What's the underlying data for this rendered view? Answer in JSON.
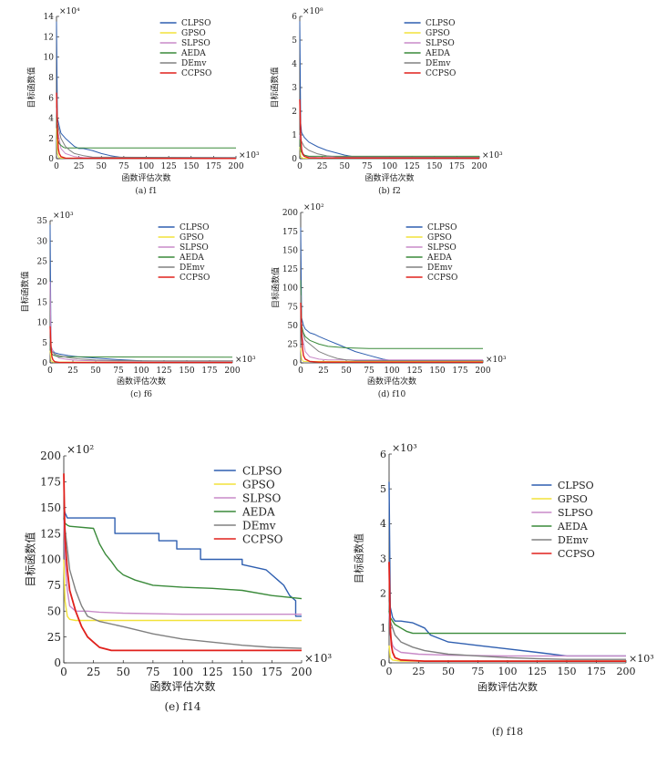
{
  "figure": {
    "legend_names": [
      "CLPSO",
      "GPSO",
      "SLPSO",
      "AEDA",
      "DEmv",
      "CCPSO"
    ],
    "colors": {
      "CLPSO": "#2f5fb0",
      "GPSO": "#f2e23a",
      "SLPSO": "#c88ac8",
      "AEDA": "#3a8a3a",
      "DEmv": "#808080",
      "CCPSO": "#e0201b"
    }
  },
  "chart_data": [
    {
      "id": "f1",
      "type": "line",
      "caption": "(a) f1",
      "xlabel": "函数评估次数",
      "ylabel": "目标函数值",
      "x_exponent": "×10³",
      "y_exponent": "×10⁴",
      "xlim": [
        0,
        200
      ],
      "ylim": [
        0,
        14
      ],
      "xticks": [
        0,
        25,
        50,
        75,
        100,
        125,
        150,
        175,
        200
      ],
      "yticks": [
        0,
        2,
        4,
        6,
        8,
        10,
        12,
        14
      ],
      "legend": "top-right",
      "grid": false,
      "series": [
        {
          "name": "CLPSO",
          "x": [
            0,
            1,
            3,
            5,
            10,
            15,
            20,
            25,
            30,
            40,
            50,
            60,
            70,
            75,
            200
          ],
          "y": [
            13.5,
            4.0,
            3.2,
            2.5,
            2.0,
            1.6,
            1.2,
            1.0,
            1.0,
            0.8,
            0.5,
            0.3,
            0.15,
            0.1,
            0.1
          ]
        },
        {
          "name": "GPSO",
          "x": [
            0,
            1,
            3,
            5,
            200
          ],
          "y": [
            3.0,
            0.5,
            0.1,
            0.05,
            0.05
          ]
        },
        {
          "name": "SLPSO",
          "x": [
            0,
            1,
            5,
            10,
            20,
            30,
            50,
            200
          ],
          "y": [
            5.0,
            3.0,
            1.0,
            0.5,
            0.2,
            0.1,
            0.05,
            0.05
          ]
        },
        {
          "name": "AEDA",
          "x": [
            0,
            1,
            3,
            5,
            8,
            10,
            200
          ],
          "y": [
            4.0,
            2.0,
            1.5,
            1.3,
            1.1,
            1.05,
            1.05
          ]
        },
        {
          "name": "DEmv",
          "x": [
            0,
            1,
            5,
            10,
            15,
            20,
            30,
            40,
            200
          ],
          "y": [
            6.0,
            3.5,
            2.0,
            1.2,
            0.8,
            0.5,
            0.3,
            0.15,
            0.1
          ]
        },
        {
          "name": "CCPSO",
          "x": [
            0,
            1,
            2,
            3,
            5,
            10,
            200
          ],
          "y": [
            6.5,
            3.0,
            1.0,
            0.5,
            0.2,
            0.05,
            0.02
          ]
        }
      ]
    },
    {
      "id": "f2",
      "type": "line",
      "caption": "(b) f2",
      "xlabel": "函数评估次数",
      "ylabel": "目标函数值",
      "x_exponent": "×10³",
      "y_exponent": "×10⁸",
      "xlim": [
        0,
        200
      ],
      "ylim": [
        0,
        6
      ],
      "xticks": [
        0,
        25,
        50,
        75,
        100,
        125,
        150,
        175,
        200
      ],
      "yticks": [
        0,
        1,
        2,
        3,
        4,
        5,
        6
      ],
      "legend": "top-right",
      "grid": false,
      "series": [
        {
          "name": "CLPSO",
          "x": [
            0,
            1,
            2,
            5,
            10,
            20,
            30,
            40,
            50,
            60,
            70,
            200
          ],
          "y": [
            5.8,
            1.5,
            1.1,
            0.9,
            0.7,
            0.5,
            0.35,
            0.25,
            0.15,
            0.08,
            0.05,
            0.05
          ]
        },
        {
          "name": "GPSO",
          "x": [
            0,
            1,
            3,
            200
          ],
          "y": [
            0.5,
            0.1,
            0.02,
            0.02
          ]
        },
        {
          "name": "SLPSO",
          "x": [
            0,
            1,
            5,
            10,
            20,
            200
          ],
          "y": [
            1.0,
            0.4,
            0.15,
            0.08,
            0.05,
            0.05
          ]
        },
        {
          "name": "AEDA",
          "x": [
            0,
            1,
            5,
            10,
            200
          ],
          "y": [
            0.8,
            0.3,
            0.15,
            0.1,
            0.1
          ]
        },
        {
          "name": "DEmv",
          "x": [
            0,
            1,
            5,
            10,
            20,
            30,
            40,
            200
          ],
          "y": [
            1.2,
            0.8,
            0.5,
            0.35,
            0.2,
            0.12,
            0.08,
            0.06
          ]
        },
        {
          "name": "CCPSO",
          "x": [
            0,
            1,
            2,
            3,
            5,
            10,
            200
          ],
          "y": [
            2.5,
            1.0,
            0.4,
            0.2,
            0.1,
            0.03,
            0.02
          ]
        }
      ]
    },
    {
      "id": "f6",
      "type": "line",
      "caption": "(c) f6",
      "xlabel": "函数评估次数",
      "ylabel": "目标函数值",
      "x_exponent": "×10³",
      "y_exponent": "×10³",
      "xlim": [
        0,
        200
      ],
      "ylim": [
        0,
        35
      ],
      "xticks": [
        0,
        25,
        50,
        75,
        100,
        125,
        150,
        175,
        200
      ],
      "yticks": [
        0,
        5,
        10,
        15,
        20,
        25,
        30,
        35
      ],
      "legend": "top-right",
      "grid": false,
      "series": [
        {
          "name": "CLPSO",
          "x": [
            0,
            1,
            3,
            5,
            10,
            20,
            30,
            50,
            75,
            100,
            150,
            200
          ],
          "y": [
            34.0,
            4.0,
            3.0,
            2.5,
            2.2,
            1.8,
            1.5,
            1.2,
            0.8,
            0.5,
            0.3,
            0.3
          ]
        },
        {
          "name": "GPSO",
          "x": [
            0,
            1,
            3,
            200
          ],
          "y": [
            3.0,
            0.5,
            0.2,
            0.2
          ]
        },
        {
          "name": "SLPSO",
          "x": [
            0,
            1,
            5,
            10,
            20,
            30,
            50,
            100,
            200
          ],
          "y": [
            20.0,
            4.0,
            2.0,
            1.2,
            0.8,
            0.6,
            0.5,
            0.4,
            0.4
          ]
        },
        {
          "name": "AEDA",
          "x": [
            0,
            1,
            3,
            5,
            10,
            200
          ],
          "y": [
            4.0,
            2.5,
            2.0,
            1.8,
            1.5,
            1.4
          ]
        },
        {
          "name": "DEmv",
          "x": [
            0,
            1,
            5,
            10,
            20,
            30,
            50,
            100,
            200
          ],
          "y": [
            6.0,
            3.0,
            2.2,
            1.8,
            1.3,
            1.0,
            0.7,
            0.5,
            0.5
          ]
        },
        {
          "name": "CCPSO",
          "x": [
            0,
            1,
            2,
            3,
            5,
            10,
            200
          ],
          "y": [
            9.0,
            4.0,
            1.5,
            0.8,
            0.3,
            0.1,
            0.1
          ]
        }
      ]
    },
    {
      "id": "f10",
      "type": "line",
      "caption": "(d) f10",
      "xlabel": "函数评估次数",
      "ylabel": "目标函数值",
      "x_exponent": "×10³",
      "y_exponent": "×10²",
      "xlim": [
        0,
        200
      ],
      "ylim": [
        0,
        200
      ],
      "xticks": [
        0,
        25,
        50,
        75,
        100,
        125,
        150,
        175,
        200
      ],
      "yticks": [
        0,
        25,
        50,
        75,
        100,
        125,
        150,
        175,
        200
      ],
      "legend": "top-right",
      "grid": false,
      "series": [
        {
          "name": "CLPSO",
          "x": [
            0,
            1,
            3,
            5,
            10,
            15,
            20,
            30,
            40,
            50,
            60,
            75,
            90,
            100,
            200
          ],
          "y": [
            180,
            60,
            50,
            45,
            40,
            38,
            35,
            30,
            25,
            20,
            15,
            10,
            5,
            3,
            3
          ]
        },
        {
          "name": "GPSO",
          "x": [
            0,
            1,
            3,
            200
          ],
          "y": [
            20,
            5,
            2,
            2
          ]
        },
        {
          "name": "SLPSO",
          "x": [
            0,
            1,
            5,
            10,
            20,
            30,
            200
          ],
          "y": [
            100,
            40,
            15,
            8,
            5,
            4,
            4
          ]
        },
        {
          "name": "AEDA",
          "x": [
            0,
            1,
            3,
            5,
            10,
            20,
            30,
            50,
            75,
            200
          ],
          "y": [
            110,
            50,
            40,
            35,
            30,
            25,
            22,
            20,
            19,
            19
          ]
        },
        {
          "name": "DEmv",
          "x": [
            0,
            1,
            5,
            10,
            20,
            30,
            40,
            50,
            60,
            200
          ],
          "y": [
            90,
            45,
            30,
            25,
            15,
            10,
            6,
            4,
            3,
            3
          ]
        },
        {
          "name": "CCPSO",
          "x": [
            0,
            1,
            2,
            3,
            5,
            10,
            20,
            200
          ],
          "y": [
            80,
            40,
            20,
            10,
            5,
            2,
            1,
            1
          ]
        }
      ]
    },
    {
      "id": "f14",
      "type": "line",
      "caption": "(e) f14",
      "xlabel": "函数评估次数",
      "ylabel": "目标函数值",
      "x_exponent": "×10³",
      "y_exponent": "×10²",
      "xlim": [
        0,
        200
      ],
      "ylim": [
        0,
        200
      ],
      "xticks": [
        0,
        25,
        50,
        75,
        100,
        125,
        150,
        175,
        200
      ],
      "yticks": [
        0,
        25,
        50,
        75,
        100,
        125,
        150,
        175,
        200
      ],
      "legend": "top-right",
      "grid": false,
      "series": [
        {
          "name": "CLPSO",
          "x": [
            0,
            1,
            3,
            43,
            43,
            80,
            80,
            95,
            95,
            115,
            115,
            150,
            150,
            170,
            175,
            180,
            185,
            190,
            195,
            195,
            200
          ],
          "y": [
            150,
            145,
            140,
            140,
            125,
            125,
            118,
            118,
            110,
            110,
            100,
            100,
            95,
            90,
            85,
            80,
            75,
            65,
            60,
            45,
            45
          ]
        },
        {
          "name": "GPSO",
          "x": [
            0,
            1,
            3,
            5,
            10,
            200
          ],
          "y": [
            100,
            60,
            45,
            42,
            41,
            41
          ]
        },
        {
          "name": "SLPSO",
          "x": [
            0,
            1,
            3,
            5,
            10,
            20,
            30,
            50,
            100,
            200
          ],
          "y": [
            140,
            100,
            70,
            55,
            50,
            50,
            49,
            48,
            47,
            47
          ]
        },
        {
          "name": "AEDA",
          "x": [
            0,
            1,
            3,
            5,
            25,
            30,
            35,
            40,
            45,
            50,
            60,
            75,
            100,
            125,
            150,
            175,
            200
          ],
          "y": [
            140,
            135,
            133,
            132,
            130,
            115,
            105,
            98,
            90,
            85,
            80,
            75,
            73,
            72,
            70,
            65,
            62
          ]
        },
        {
          "name": "DEmv",
          "x": [
            0,
            1,
            3,
            5,
            10,
            15,
            20,
            30,
            50,
            75,
            100,
            125,
            150,
            175,
            200
          ],
          "y": [
            150,
            130,
            110,
            90,
            70,
            55,
            45,
            40,
            35,
            28,
            23,
            20,
            17,
            15,
            14
          ]
        },
        {
          "name": "CCPSO",
          "x": [
            0,
            1,
            3,
            5,
            10,
            15,
            20,
            25,
            30,
            40,
            50,
            75,
            200
          ],
          "y": [
            183,
            120,
            90,
            70,
            50,
            35,
            25,
            20,
            15,
            12,
            12,
            12,
            12
          ]
        }
      ]
    },
    {
      "id": "f18",
      "type": "line",
      "caption": "(f) f18",
      "xlabel": "函数评估次数",
      "ylabel": "目标函数值",
      "x_exponent": "×10³",
      "y_exponent": "×10³",
      "xlim": [
        0,
        200
      ],
      "ylim": [
        0,
        6
      ],
      "xticks": [
        0,
        25,
        50,
        75,
        100,
        125,
        150,
        175,
        200
      ],
      "yticks": [
        0,
        1,
        2,
        3,
        4,
        5,
        6
      ],
      "legend": "top-right",
      "grid": false,
      "series": [
        {
          "name": "CLPSO",
          "x": [
            0,
            1,
            3,
            5,
            10,
            20,
            30,
            35,
            50,
            75,
            100,
            125,
            150,
            200
          ],
          "y": [
            5.2,
            1.6,
            1.3,
            1.2,
            1.2,
            1.15,
            1.0,
            0.8,
            0.6,
            0.5,
            0.4,
            0.3,
            0.2,
            0.2
          ]
        },
        {
          "name": "GPSO",
          "x": [
            0,
            1,
            3,
            10,
            200
          ],
          "y": [
            0.5,
            0.15,
            0.08,
            0.05,
            0.05
          ]
        },
        {
          "name": "SLPSO",
          "x": [
            0,
            1,
            3,
            5,
            10,
            25,
            50,
            100,
            200
          ],
          "y": [
            1.5,
            0.8,
            0.5,
            0.4,
            0.3,
            0.25,
            0.22,
            0.2,
            0.2
          ]
        },
        {
          "name": "AEDA",
          "x": [
            0,
            1,
            3,
            5,
            10,
            15,
            20,
            200
          ],
          "y": [
            1.5,
            1.3,
            1.2,
            1.1,
            1.0,
            0.9,
            0.85,
            0.85
          ]
        },
        {
          "name": "DEmv",
          "x": [
            0,
            1,
            3,
            5,
            10,
            20,
            30,
            50,
            75,
            100,
            125,
            150,
            200
          ],
          "y": [
            1.8,
            1.2,
            1.0,
            0.8,
            0.6,
            0.45,
            0.35,
            0.25,
            0.2,
            0.15,
            0.12,
            0.1,
            0.1
          ]
        },
        {
          "name": "CCPSO",
          "x": [
            0,
            1,
            2,
            3,
            5,
            10,
            30,
            200
          ],
          "y": [
            2.9,
            1.0,
            0.5,
            0.3,
            0.15,
            0.08,
            0.05,
            0.05
          ]
        }
      ]
    }
  ]
}
